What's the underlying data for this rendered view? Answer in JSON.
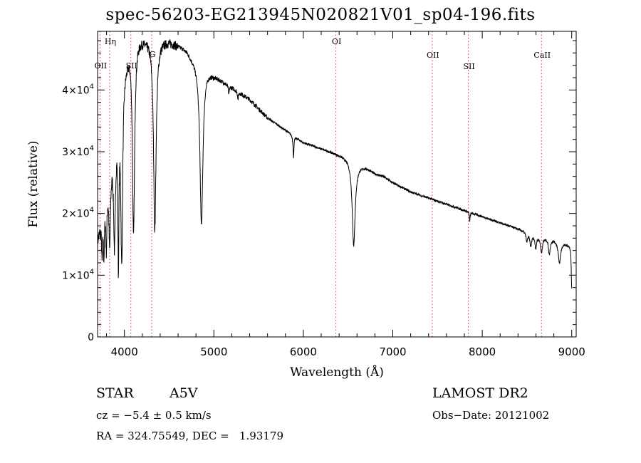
{
  "title": "spec-56203-EG213945N020821V01_sp04-196.fits",
  "info": {
    "object_class": "STAR",
    "subclass": "A5V",
    "survey": "LAMOST DR2",
    "cz": "cz = −5.4 ± 0.5 km/s",
    "obs_date": "Obs−Date: 20121002",
    "coords": "RA = 324.75549, DEC =   1.93179"
  },
  "chart_data": {
    "type": "line",
    "title": "spec-56203-EG213945N020821V01_sp04-196.fits",
    "xlabel": "Wavelength (Å)",
    "ylabel": "Flux (relative)",
    "xlim": [
      3700,
      9050
    ],
    "ylim": [
      0,
      49500
    ],
    "x_ticks": [
      4000,
      5000,
      6000,
      7000,
      8000,
      9000
    ],
    "y_ticks": [
      {
        "value": 0,
        "mant": "",
        "exp": "",
        "plain": "0"
      },
      {
        "value": 10000,
        "mant": "1×10",
        "exp": "4",
        "plain": ""
      },
      {
        "value": 20000,
        "mant": "2×10",
        "exp": "4",
        "plain": ""
      },
      {
        "value": 30000,
        "mant": "3×10",
        "exp": "4",
        "plain": ""
      },
      {
        "value": 40000,
        "mant": "4×10",
        "exp": "4",
        "plain": ""
      }
    ],
    "line_markers": [
      {
        "label": "Hη",
        "wavelength": 3835
      },
      {
        "label": "OII",
        "wavelength": 3727
      },
      {
        "label": "SII",
        "wavelength": 4072
      },
      {
        "label": "G",
        "wavelength": 4305
      },
      {
        "label": "OI",
        "wavelength": 6364
      },
      {
        "label": "OII",
        "wavelength": 7441
      },
      {
        "label": "SII",
        "wavelength": 7845
      },
      {
        "label": "CaII",
        "wavelength": 8662
      }
    ],
    "continuum": [
      [
        3700,
        16000
      ],
      [
        3760,
        20000
      ],
      [
        3800,
        25000
      ],
      [
        3850,
        29000
      ],
      [
        3900,
        34000
      ],
      [
        3950,
        39000
      ],
      [
        4000,
        44000
      ],
      [
        4060,
        47000
      ],
      [
        4150,
        48500
      ],
      [
        4300,
        48500
      ],
      [
        4500,
        48000
      ],
      [
        4650,
        47000
      ],
      [
        4700,
        46500
      ],
      [
        4750,
        45500
      ],
      [
        4820,
        44500
      ],
      [
        4900,
        43800
      ],
      [
        5000,
        42500
      ],
      [
        5100,
        41500
      ],
      [
        5200,
        40500
      ],
      [
        5300,
        39500
      ],
      [
        5400,
        38500
      ],
      [
        5500,
        37000
      ],
      [
        5600,
        35500
      ],
      [
        5700,
        34500
      ],
      [
        5800,
        33500
      ],
      [
        5900,
        32500
      ],
      [
        6000,
        31500
      ],
      [
        6100,
        31000
      ],
      [
        6200,
        30500
      ],
      [
        6300,
        30000
      ],
      [
        6400,
        29500
      ],
      [
        6500,
        29000
      ],
      [
        6600,
        28000
      ],
      [
        6700,
        27500
      ],
      [
        6800,
        26500
      ],
      [
        6900,
        26000
      ],
      [
        7000,
        25000
      ],
      [
        7200,
        23500
      ],
      [
        7400,
        22500
      ],
      [
        7600,
        21500
      ],
      [
        7800,
        20500
      ],
      [
        8000,
        19500
      ],
      [
        8200,
        18500
      ],
      [
        8400,
        17500
      ],
      [
        8600,
        16500
      ],
      [
        8800,
        15800
      ],
      [
        8950,
        15000
      ],
      [
        9000,
        14800
      ]
    ],
    "absorption_lines": [
      {
        "center": 3750,
        "depth": 6000,
        "width": 6
      },
      {
        "center": 3771,
        "depth": 7000,
        "width": 7
      },
      {
        "center": 3798,
        "depth": 9000,
        "width": 8
      },
      {
        "center": 3835,
        "depth": 12000,
        "width": 10
      },
      {
        "center": 3889,
        "depth": 17000,
        "width": 12
      },
      {
        "center": 3933,
        "depth": 23000,
        "width": 7
      },
      {
        "center": 3970,
        "depth": 28000,
        "width": 12
      },
      {
        "center": 4102,
        "depth": 31000,
        "width": 14
      },
      {
        "center": 4340,
        "depth": 31000,
        "width": 17
      },
      {
        "center": 4861,
        "depth": 26000,
        "width": 20
      },
      {
        "center": 5167,
        "depth": 1500,
        "width": 6
      },
      {
        "center": 5270,
        "depth": 1200,
        "width": 6
      },
      {
        "center": 5890,
        "depth": 3500,
        "width": 6
      },
      {
        "center": 6563,
        "depth": 13500,
        "width": 20
      },
      {
        "center": 7860,
        "depth": 1500,
        "width": 5
      },
      {
        "center": 8498,
        "depth": 1500,
        "width": 10
      },
      {
        "center": 8542,
        "depth": 2000,
        "width": 12
      },
      {
        "center": 8598,
        "depth": 2000,
        "width": 11
      },
      {
        "center": 8662,
        "depth": 2500,
        "width": 13
      },
      {
        "center": 8750,
        "depth": 2500,
        "width": 12
      },
      {
        "center": 8863,
        "depth": 3500,
        "width": 16
      },
      {
        "center": 9000,
        "depth": 7000,
        "width": 6
      }
    ]
  }
}
